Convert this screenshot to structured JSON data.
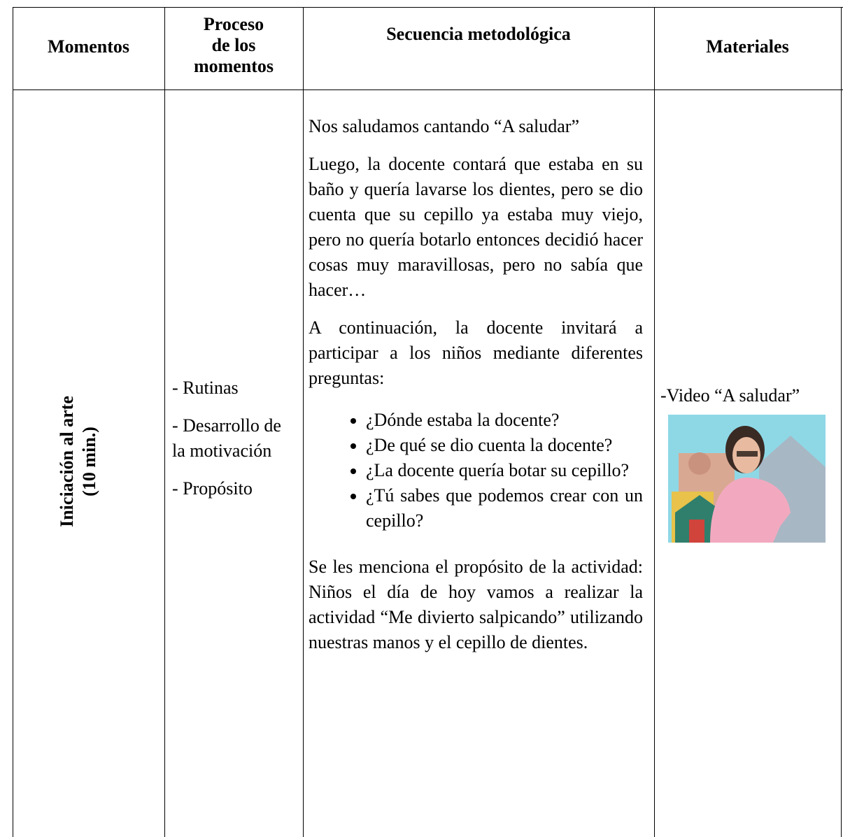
{
  "table": {
    "header": {
      "moments": "Momentos",
      "process": [
        "Proceso",
        "de los",
        "momentos"
      ],
      "sequence": "Secuencia metodológica",
      "materials": "Materiales"
    },
    "rows": [
      {
        "moment": [
          "Iniciación al arte",
          "(10 min.)"
        ],
        "process": [
          "- Rutinas",
          "- Desarrollo de la motivación",
          "- Propósito"
        ],
        "sequence": {
          "paragraphs": [
            "Nos saludamos cantando “A saludar”",
            "Luego, la docente contará que estaba en su baño y quería lavarse los dientes, pero se dio cuenta que su cepillo ya estaba muy viejo, pero no quería botarlo entonces decidió hacer cosas muy maravillosas, pero no sabía que hacer…",
            "A continuación, la docente invitará a participar a los niños mediante diferentes preguntas:"
          ],
          "bullets": [
            "¿Dónde estaba la docente?",
            "¿De qué se dio cuenta la docente?",
            "¿La docente quería botar su cepillo?",
            "¿Tú sabes que podemos crear con un cepillo?"
          ],
          "closing": "Se les menciona el propósito de la actividad: Niños el día de hoy vamos a realizar la actividad “Me divierto salpicando” utilizando nuestras manos y el cepillo de dientes."
        },
        "materials": [
          "-Video “A saludar”"
        ]
      }
    ]
  }
}
